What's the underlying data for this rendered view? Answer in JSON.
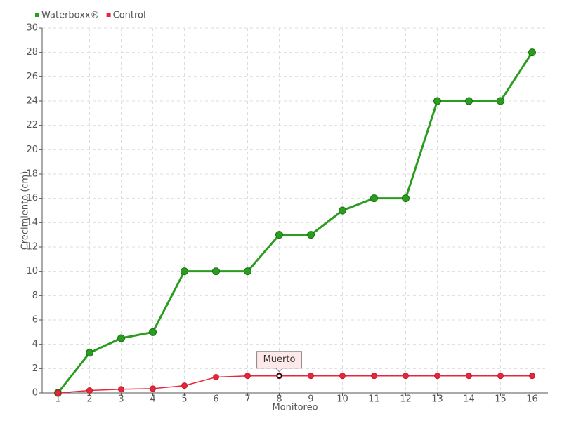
{
  "chart_data": {
    "type": "line",
    "x_label": "Monitoreo",
    "y_label": "Crecimiento (cm)",
    "categories": [
      "1",
      "2",
      "3",
      "4",
      "5",
      "6",
      "7",
      "8",
      "9",
      "10",
      "11",
      "12",
      "13",
      "14",
      "15",
      "16"
    ],
    "series": [
      {
        "name": "Waterboxx®",
        "color": "#2a9d1f",
        "values": [
          0,
          3.3,
          4.5,
          5,
          10,
          10,
          10,
          13,
          13,
          15,
          16,
          16,
          24,
          24,
          24,
          28
        ]
      },
      {
        "name": "Control",
        "color": "#e8263a",
        "values": [
          0,
          0.2,
          0.3,
          0.35,
          0.6,
          1.3,
          1.4,
          1.4,
          1.4,
          1.4,
          1.4,
          1.4,
          1.4,
          1.4,
          1.4,
          1.4
        ]
      }
    ],
    "ylim": [
      0,
      30
    ],
    "yticks": [
      0,
      2,
      4,
      6,
      8,
      10,
      12,
      14,
      16,
      18,
      20,
      22,
      24,
      26,
      28,
      30
    ],
    "grid": true,
    "legend": "top-left",
    "annotations": [
      {
        "text": "Muerto",
        "series": "Control",
        "category": "8"
      }
    ]
  }
}
